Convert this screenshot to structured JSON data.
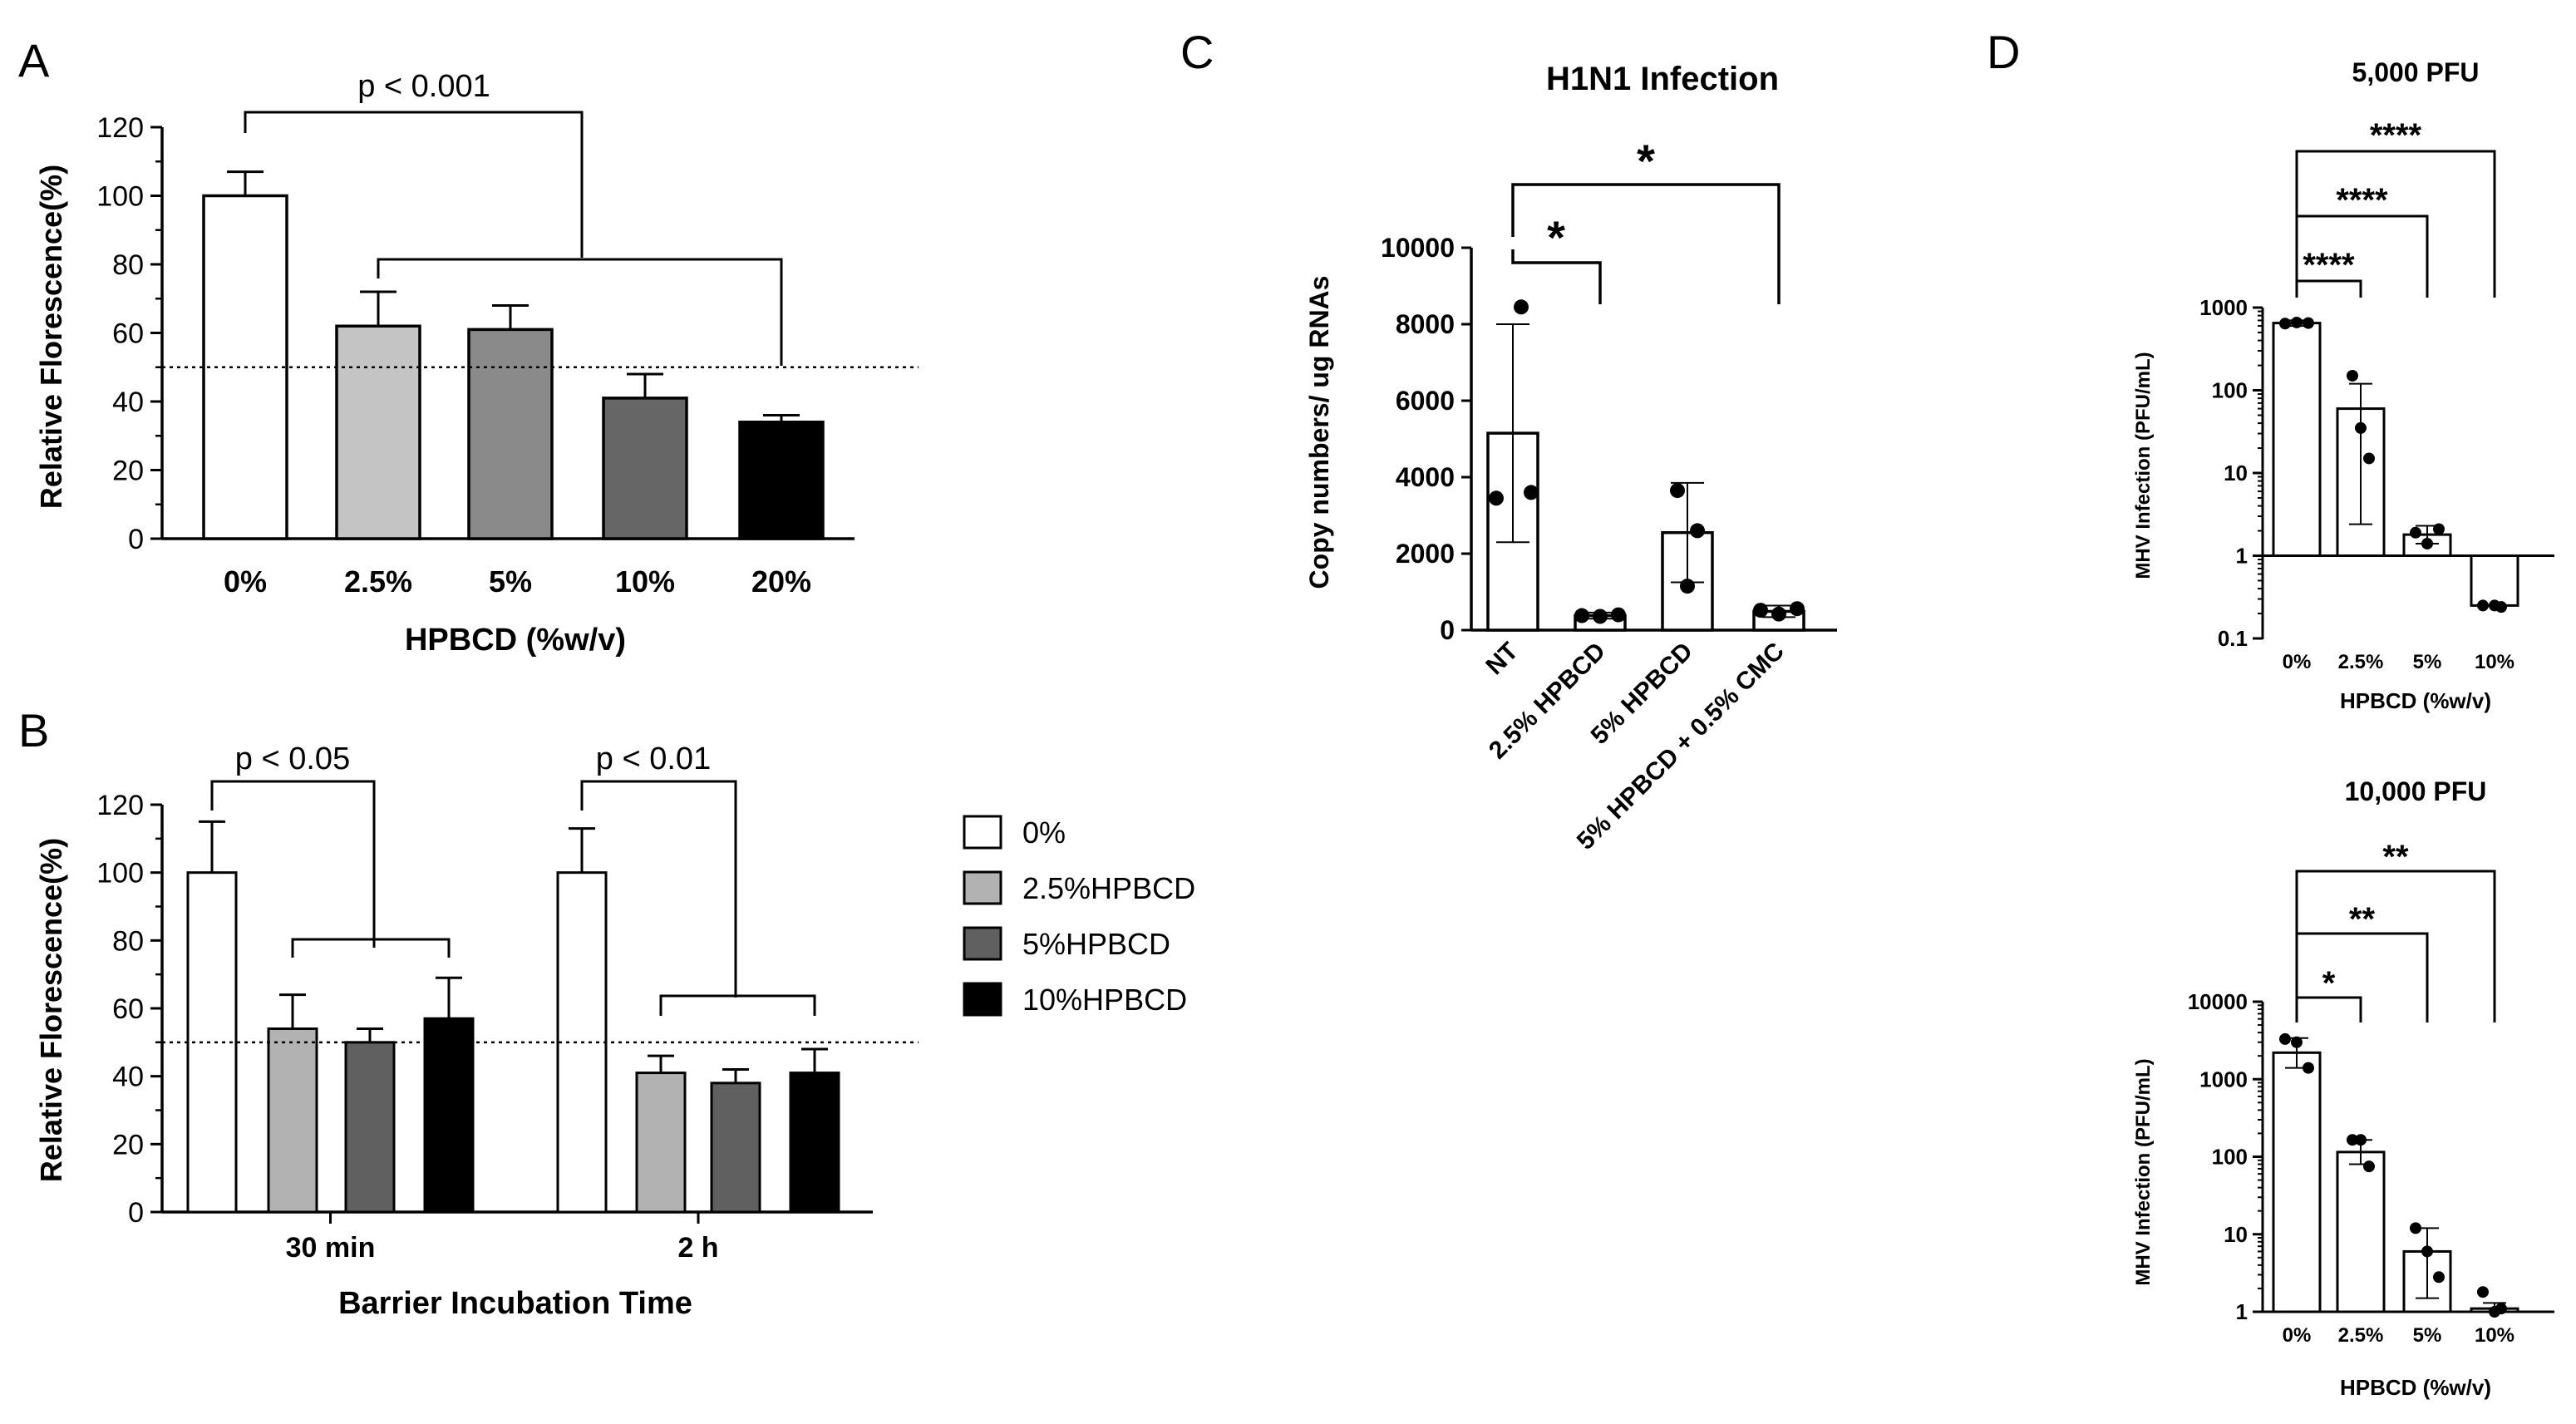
{
  "panels": {
    "A": "A",
    "B": "B",
    "C": "C",
    "D": "D"
  },
  "colors": {
    "zero": "#ffffff",
    "p2_5": "#c4c4c4",
    "p5": "#8a8a8a",
    "p10": "#666666",
    "p20": "#000000",
    "b2_5": "#b2b2b2",
    "b5": "#606060",
    "b10": "#000000"
  },
  "chart_data": [
    {
      "id": "A",
      "type": "bar",
      "categories": [
        "0%",
        "2.5%",
        "5%",
        "10%",
        "20%"
      ],
      "values": [
        100,
        62,
        61,
        41,
        34
      ],
      "errors": [
        7,
        10,
        7,
        7,
        2
      ],
      "ylim": [
        0,
        120
      ],
      "yticks": [
        "0",
        "20",
        "40",
        "60",
        "80",
        "100",
        "120"
      ],
      "ylabel": "Relative Florescence(%)",
      "xlabel": "HPBCD (%w/v)",
      "reference_line": 50,
      "annotation": "p < 0.001"
    },
    {
      "id": "B",
      "type": "bar",
      "categories": [
        "30 min",
        "2 h"
      ],
      "series": [
        {
          "name": "0%",
          "values": [
            100,
            100
          ],
          "errors": [
            15,
            13
          ]
        },
        {
          "name": "2.5%HPBCD",
          "values": [
            54,
            41
          ],
          "errors": [
            10,
            5
          ]
        },
        {
          "name": "5%HPBCD",
          "values": [
            50,
            38
          ],
          "errors": [
            4,
            4
          ]
        },
        {
          "name": "10%HPBCD",
          "values": [
            57,
            41
          ],
          "errors": [
            12,
            7
          ]
        }
      ],
      "ylim": [
        0,
        120
      ],
      "yticks": [
        "0",
        "20",
        "40",
        "60",
        "80",
        "100",
        "120"
      ],
      "ylabel": "Relative Florescence(%)",
      "xlabel": "Barrier Incubation Time",
      "reference_line": 50,
      "annotations": [
        "p < 0.05",
        "p < 0.01"
      ]
    },
    {
      "id": "C",
      "type": "bar",
      "title": "H1N1 Infection",
      "categories": [
        "NT",
        "2.5% HPBCD",
        "5% HPBCD",
        "5% HPBCD + 0.5% CMC"
      ],
      "values": [
        5150,
        380,
        2550,
        490
      ],
      "errors": [
        2850,
        80,
        1300,
        150
      ],
      "points": [
        [
          8450,
          3450,
          3600
        ],
        [
          380,
          360,
          400
        ],
        [
          3650,
          2600,
          1150
        ],
        [
          520,
          420,
          560
        ]
      ],
      "ylim": [
        0,
        10000
      ],
      "yticks": [
        "0",
        "2000",
        "4000",
        "6000",
        "8000",
        "10000"
      ],
      "ylabel": "Copy numbers/ ug RNAs",
      "annotations": [
        "*",
        "*"
      ]
    },
    {
      "id": "D1",
      "type": "bar",
      "scale": "log",
      "title": "5,000 PFU",
      "categories": [
        "0%",
        "2.5%",
        "5%",
        "10%"
      ],
      "values": [
        650,
        60,
        1.8,
        0.25
      ],
      "err_low": [
        600,
        2.4,
        1.4,
        0.25
      ],
      "err_high": [
        700,
        120,
        2.3,
        0.25
      ],
      "points": [
        [
          640,
          660,
          650
        ],
        [
          150,
          35,
          15
        ],
        [
          1.9,
          1.4,
          2.1
        ],
        [
          0.25,
          0.24,
          0.25
        ]
      ],
      "ylim": [
        0.1,
        1000
      ],
      "yticks": [
        "0.1",
        "1",
        "10",
        "100",
        "1000"
      ],
      "ylabel": "MHV Infection (PFU/mL)",
      "xlabel": "HPBCD (%w/v)",
      "annotations": [
        "****",
        "****",
        "****"
      ]
    },
    {
      "id": "D2",
      "type": "bar",
      "scale": "log",
      "title": "10,000 PFU",
      "categories": [
        "0%",
        "2.5%",
        "5%",
        "10%"
      ],
      "values": [
        2200,
        115,
        6,
        1.1
      ],
      "err_low": [
        1400,
        80,
        1.5,
        1
      ],
      "err_high": [
        3400,
        165,
        12,
        1.3
      ],
      "points": [
        [
          3300,
          3000,
          1400
        ],
        [
          165,
          165,
          75
        ],
        [
          12,
          6,
          2.8
        ],
        [
          1.8,
          1.1,
          1
        ]
      ],
      "ylim": [
        1,
        10000
      ],
      "yticks": [
        "1",
        "10",
        "100",
        "1000",
        "10000"
      ],
      "ylabel": "MHV Infection (PFU/mL)",
      "xlabel": "HPBCD (%w/v)",
      "annotations": [
        "*",
        "**",
        "**"
      ]
    }
  ]
}
